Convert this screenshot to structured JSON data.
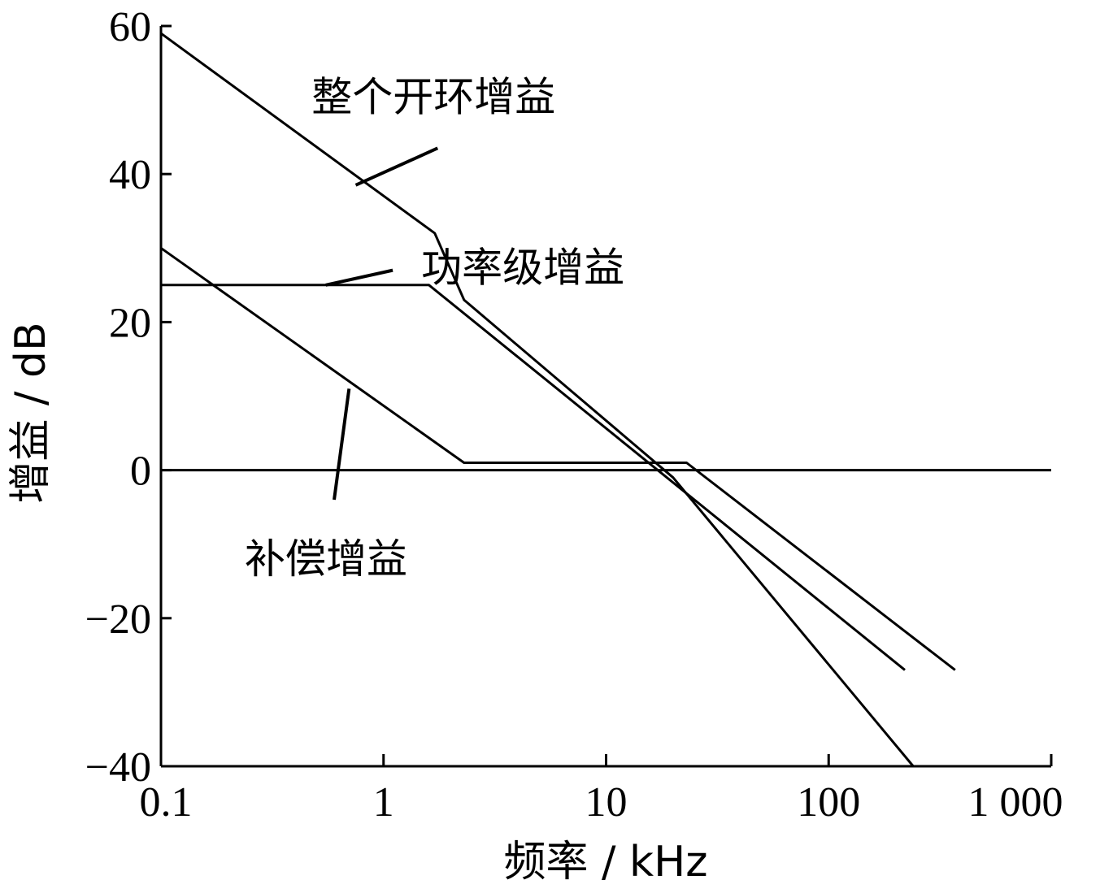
{
  "chart_data": {
    "type": "line",
    "x_scale": "log",
    "xlim": [
      0.1,
      1000
    ],
    "ylim": [
      -40,
      60
    ],
    "x_ticks": [
      0.1,
      1,
      10,
      100,
      1000
    ],
    "x_tick_labels": [
      "0.1",
      "1",
      "10",
      "100",
      "1 000"
    ],
    "y_ticks": [
      60,
      40,
      20,
      0,
      -20,
      -40
    ],
    "y_tick_labels": [
      "60",
      "40",
      "20",
      "0",
      "−20",
      "−40"
    ],
    "xlabel": "频率 / kHz",
    "ylabel": "增益 / dB",
    "grid": false,
    "zero_line": true,
    "series": [
      {
        "name": "整个开环增益",
        "x": [
          0.1,
          1.7,
          2.3,
          20,
          240
        ],
        "y": [
          59,
          32,
          23,
          -1,
          -40
        ]
      },
      {
        "name": "功率级增益",
        "x": [
          0.1,
          1.6,
          220
        ],
        "y": [
          25,
          25,
          -27
        ]
      },
      {
        "name": "补偿增益",
        "x": [
          0.1,
          2.3,
          23,
          370
        ],
        "y": [
          30,
          1,
          1,
          -27
        ]
      }
    ],
    "annotations": [
      {
        "series": 0,
        "text": "整个开环增益",
        "point": [
          0.75,
          38.5
        ],
        "label_at": [
          1.75,
          43.5
        ]
      },
      {
        "series": 1,
        "text": "功率级增益",
        "point": [
          0.55,
          25
        ],
        "label_at": [
          1.1,
          27
        ]
      },
      {
        "series": 2,
        "text": "补偿增益",
        "point": [
          0.7,
          11
        ],
        "label_at": [
          0.6,
          -4
        ]
      }
    ]
  }
}
